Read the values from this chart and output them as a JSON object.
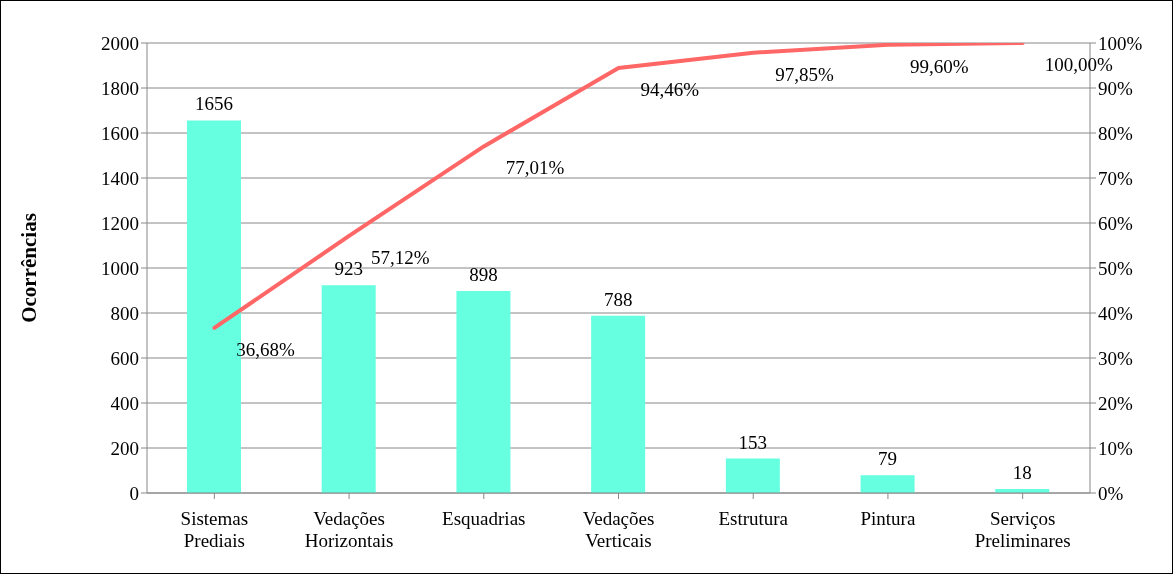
{
  "chart_data": {
    "type": "bar",
    "ylabel": "Ocorrências",
    "categories": [
      "Sistemas Prediais",
      "Vedações Horizontais",
      "Esquadrias",
      "Vedações Verticais",
      "Estrutura",
      "Pintura",
      "Serviços Preliminares"
    ],
    "series": [
      {
        "color": "#66ffe0",
        "values": [
          1656,
          923,
          898,
          788,
          153,
          79,
          18
        ]
      },
      {
        "type": "line",
        "axis": "y2",
        "color": "#ff6666",
        "values": [
          36.68,
          57.12,
          77.01,
          94.46,
          97.85,
          99.6,
          100.0
        ],
        "value_labels": [
          "36,68%",
          "57,12%",
          "77,01%",
          "94,46%",
          "97,85%",
          "99,60%",
          "100,00%"
        ]
      }
    ],
    "data_labels": true,
    "ylim": [
      0,
      2000
    ],
    "yticks": [
      0,
      200,
      400,
      600,
      800,
      1000,
      1200,
      1400,
      1600,
      1800,
      2000
    ],
    "y2lim": [
      0,
      100
    ],
    "y2ticks": [
      {
        "value": 0,
        "label": "0%"
      },
      {
        "value": 10,
        "label": "10%"
      },
      {
        "value": 20,
        "label": "20%"
      },
      {
        "value": 30,
        "label": "30%"
      },
      {
        "value": 40,
        "label": "40%"
      },
      {
        "value": 50,
        "label": "50%"
      },
      {
        "value": 60,
        "label": "60%"
      },
      {
        "value": 70,
        "label": "70%"
      },
      {
        "value": 80,
        "label": "80%"
      },
      {
        "value": 90,
        "label": "90%"
      },
      {
        "value": 100,
        "label": "100%"
      }
    ],
    "grid": "y"
  }
}
